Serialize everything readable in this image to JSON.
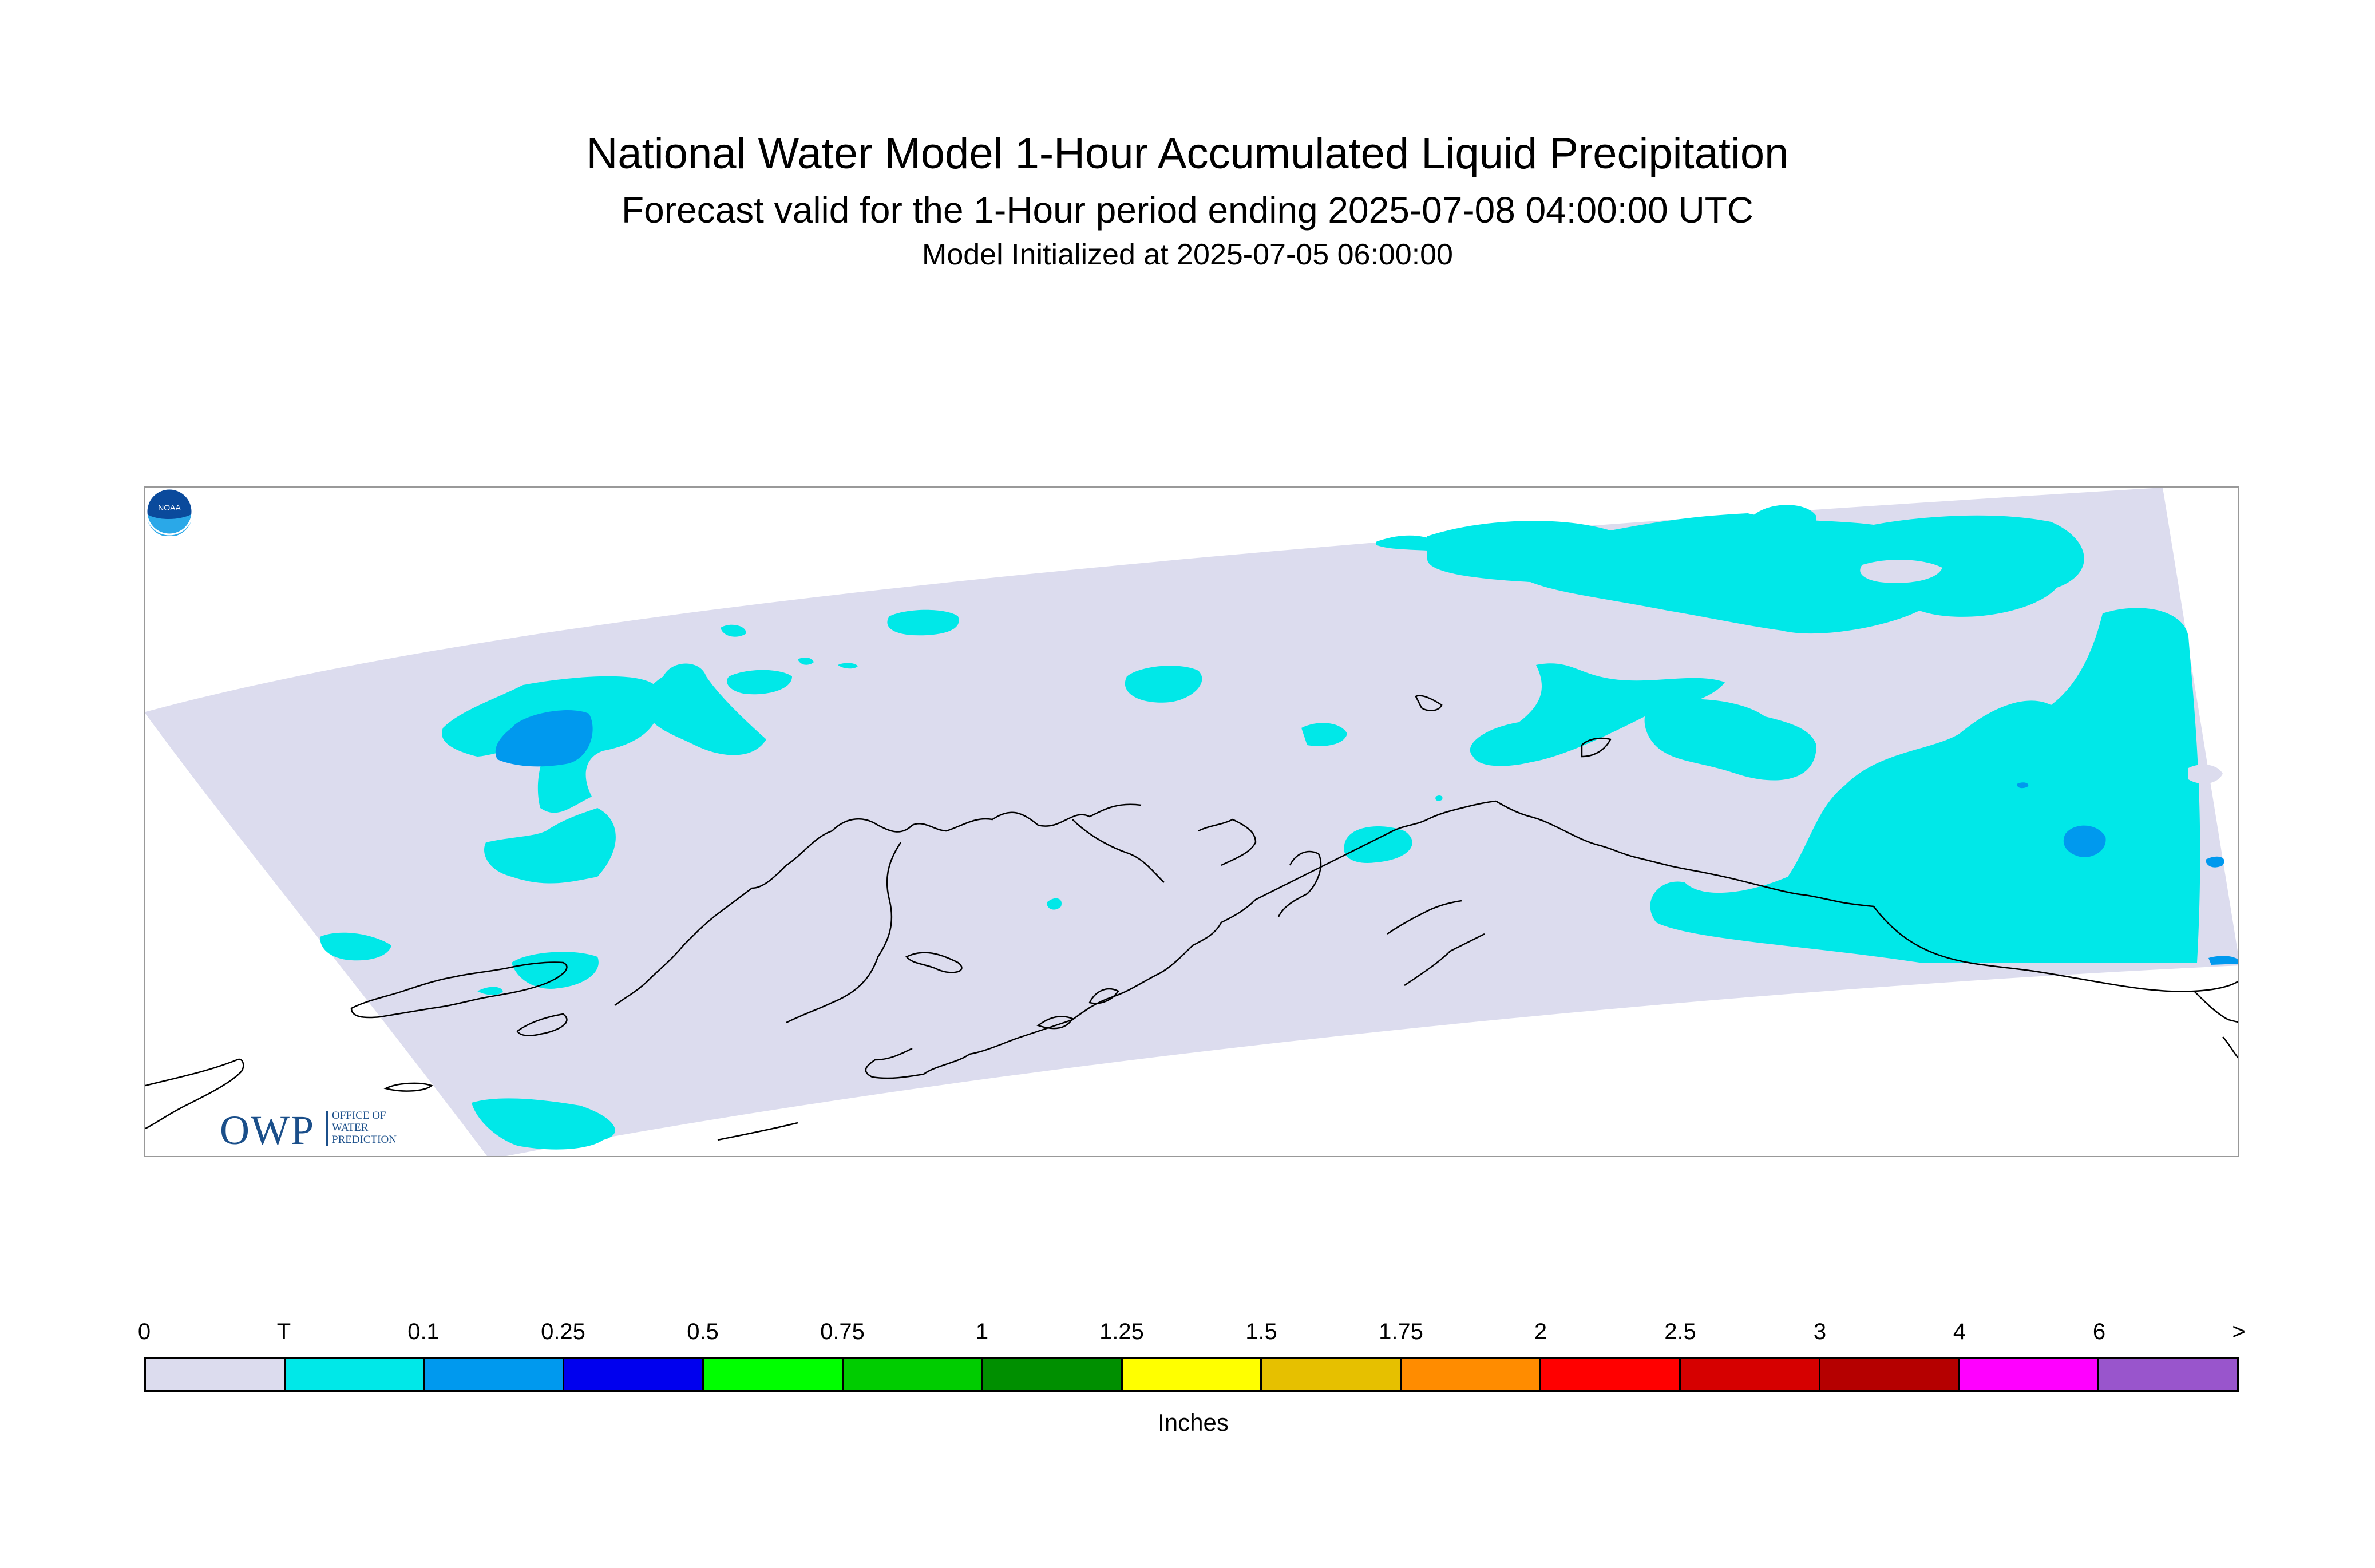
{
  "title": "National Water Model 1-Hour Accumulated Liquid Precipitation",
  "subtitle": "Forecast valid for the 1-Hour period ending 2025-07-08 04:00:00 UTC",
  "init_line": "Model Initialized at 2025-07-05 06:00:00",
  "logos": {
    "owp_text": "OWP",
    "owp_line1": "OFFICE OF",
    "owp_line2": "WATER",
    "owp_line3": "PREDICTION",
    "noaa_text": "NOAA"
  },
  "colors": {
    "domain": "#dcdcee",
    "coast": "#000000",
    "trace": "#00e8e8",
    "light_blue": "#0099ee"
  },
  "legend": {
    "units": "Inches",
    "ticks": [
      "0",
      "T",
      "0.1",
      "0.25",
      "0.5",
      "0.75",
      "1",
      "1.25",
      "1.5",
      "1.75",
      "2",
      "2.5",
      "3",
      "4",
      "6",
      ">"
    ],
    "colors": [
      "#dcdcee",
      "#00e8e8",
      "#0099ee",
      "#0000ee",
      "#00ff00",
      "#00cc00",
      "#008f00",
      "#ffff00",
      "#e6c000",
      "#ff8c00",
      "#ff0000",
      "#d60000",
      "#b50000",
      "#ff00ff",
      "#9955cc"
    ]
  }
}
